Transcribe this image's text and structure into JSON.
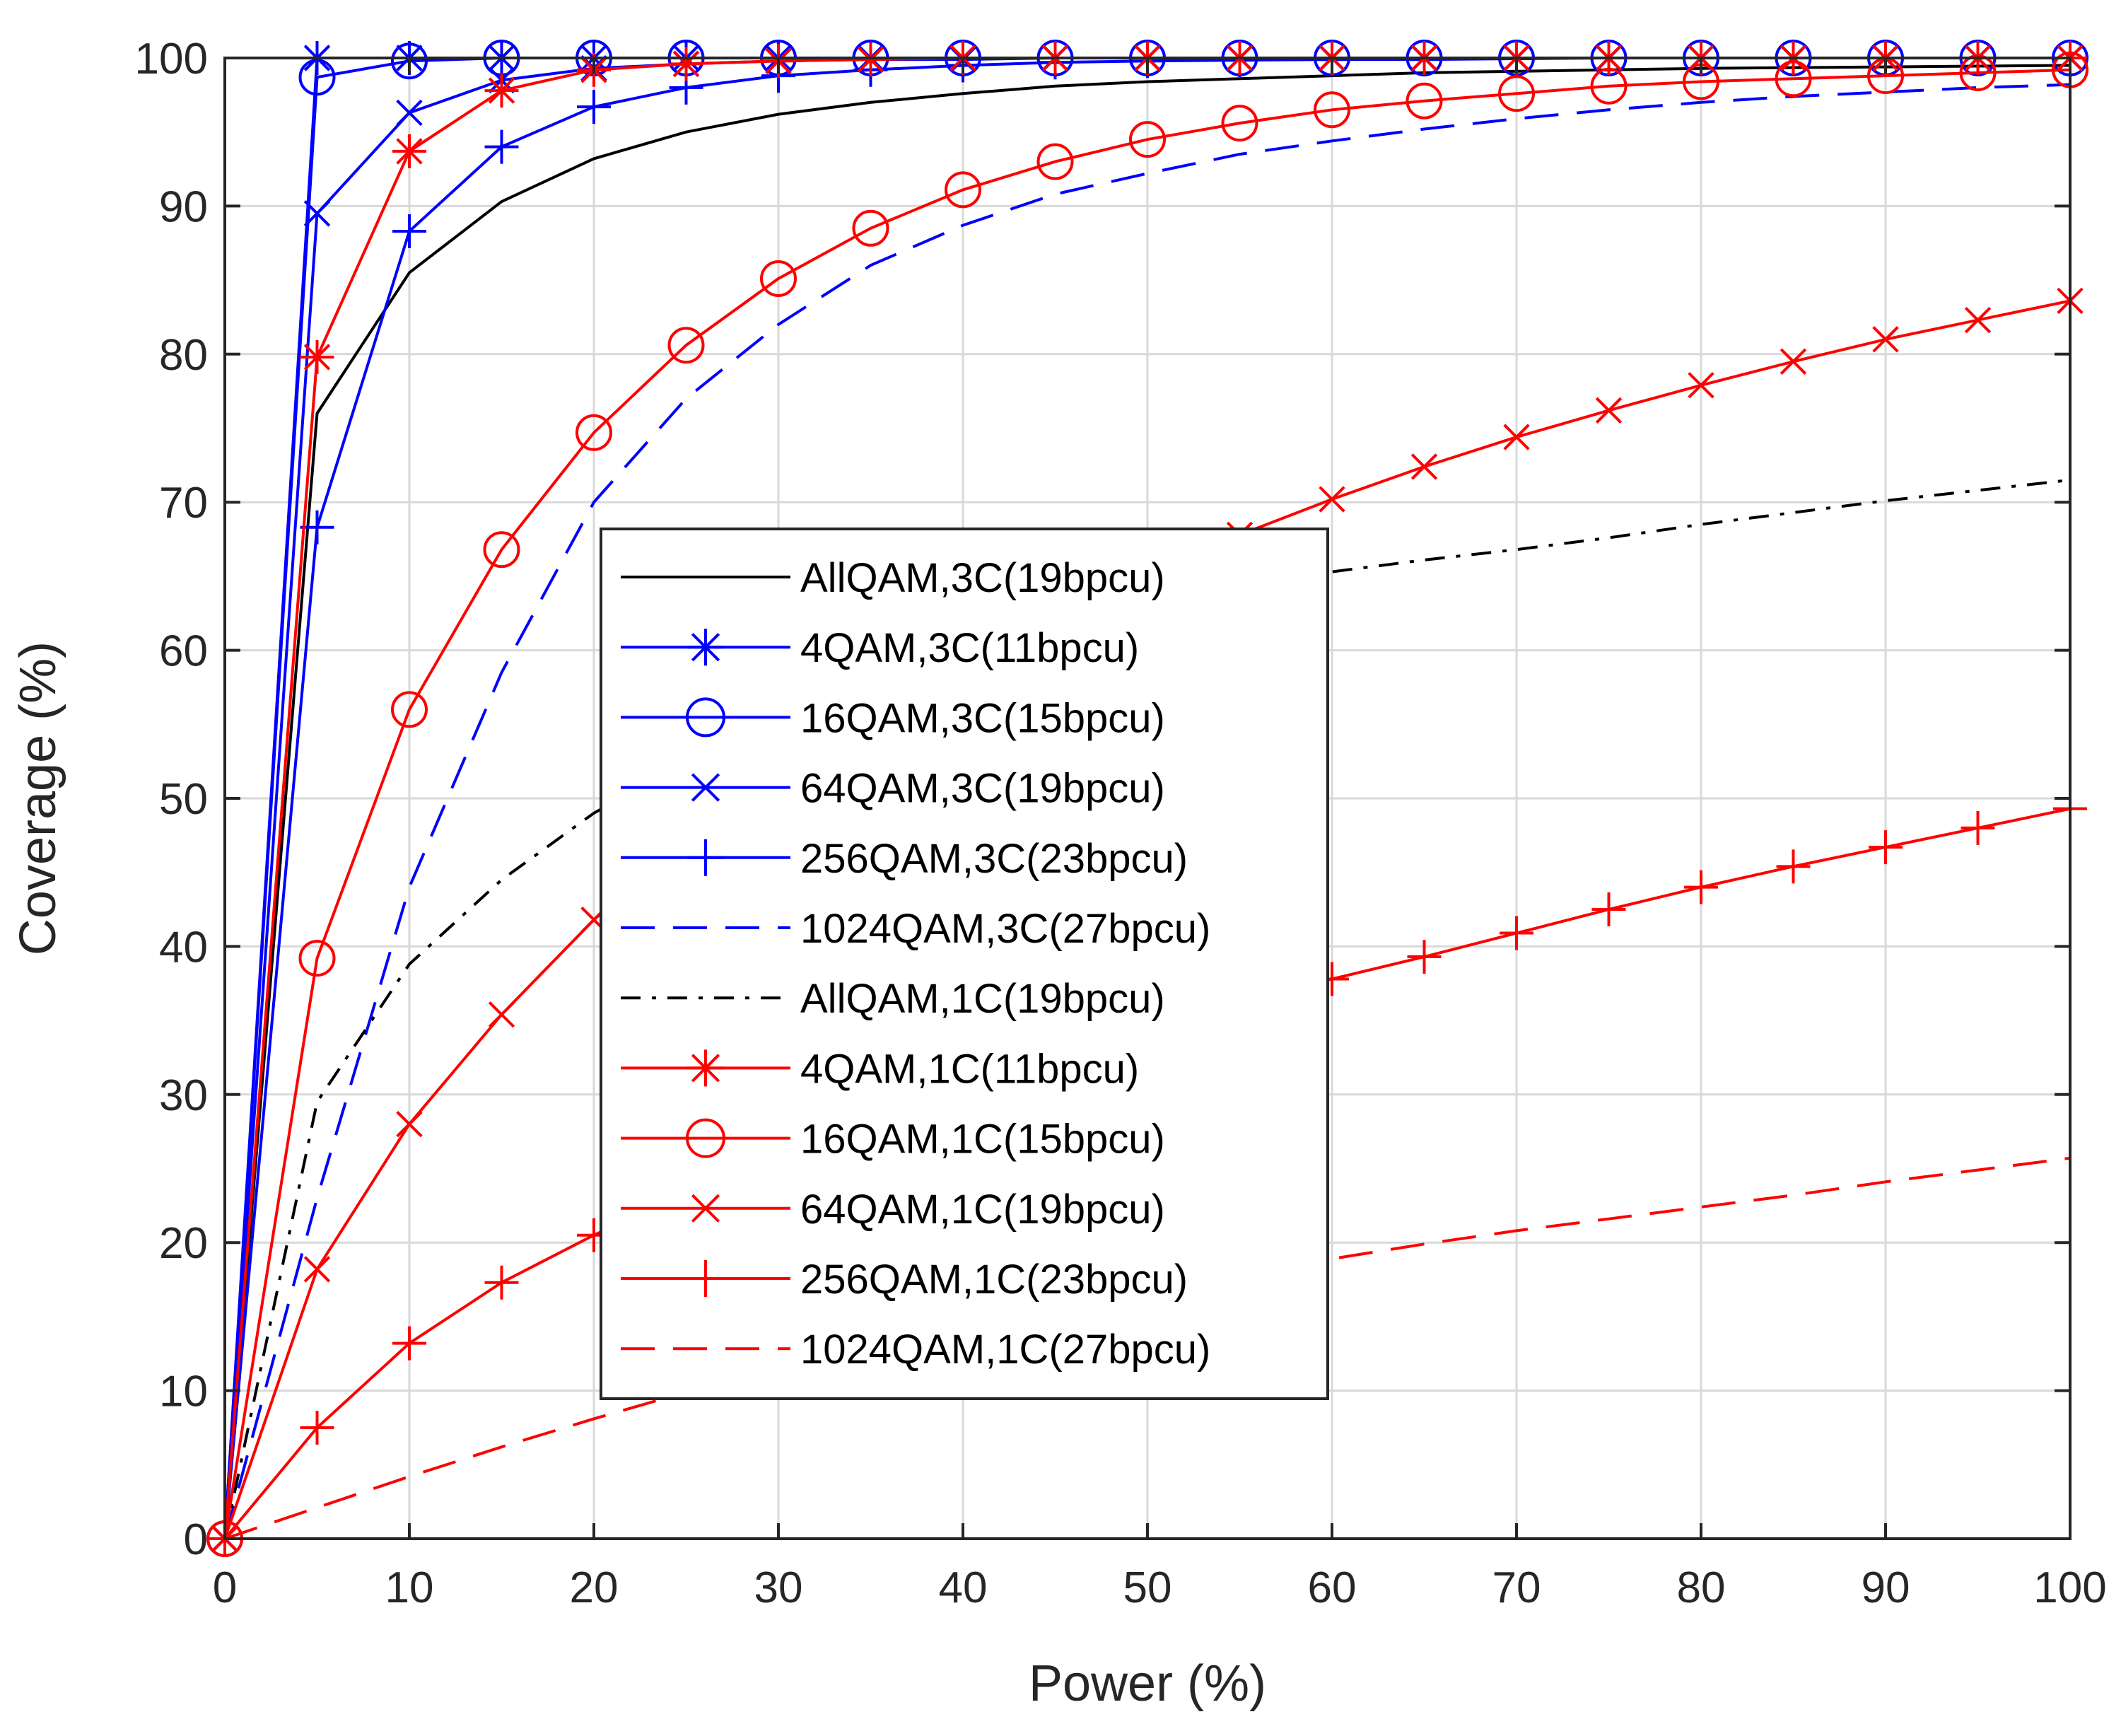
{
  "chart_data": {
    "type": "line",
    "title": "",
    "xlabel": "Power (%)",
    "ylabel": "Coverage (%)",
    "xlim": [
      0,
      100
    ],
    "ylim": [
      0,
      100
    ],
    "xticks": [
      0,
      10,
      20,
      30,
      40,
      50,
      60,
      70,
      80,
      90,
      100
    ],
    "yticks": [
      0,
      10,
      20,
      30,
      40,
      50,
      60,
      70,
      80,
      90,
      100
    ],
    "grid": true,
    "legend_position": "center-left",
    "x": [
      0,
      5,
      10,
      15,
      20,
      25,
      30,
      35,
      40,
      45,
      50,
      55,
      60,
      65,
      70,
      75,
      80,
      85,
      90,
      95,
      100
    ],
    "series": [
      {
        "name": "AllQAM,3C(19bpcu)",
        "color": "#000000",
        "dash": "solid",
        "marker": "none",
        "values": [
          0,
          76,
          85.5,
          90.3,
          93.2,
          95,
          96.2,
          97,
          97.6,
          98.1,
          98.4,
          98.6,
          98.8,
          99,
          99.1,
          99.2,
          99.3,
          99.35,
          99.4,
          99.45,
          99.5
        ]
      },
      {
        "name": "4QAM,3C(11bpcu)",
        "color": "#0000ff",
        "dash": "solid",
        "marker": "star",
        "values": [
          0,
          100,
          100,
          100,
          100,
          100,
          100,
          100,
          100,
          100,
          100,
          100,
          100,
          100,
          100,
          100,
          100,
          100,
          100,
          100,
          100
        ]
      },
      {
        "name": "16QAM,3C(15bpcu)",
        "color": "#0000ff",
        "dash": "solid",
        "marker": "circle",
        "values": [
          0,
          98.7,
          99.8,
          100,
          100,
          100,
          100,
          100,
          100,
          100,
          100,
          100,
          100,
          100,
          100,
          100,
          100,
          100,
          100,
          100,
          100
        ]
      },
      {
        "name": "64QAM,3C(19bpcu)",
        "color": "#0000ff",
        "dash": "solid",
        "marker": "x",
        "values": [
          0,
          89.5,
          96.3,
          98.5,
          99.3,
          99.6,
          99.8,
          99.9,
          99.9,
          100,
          100,
          100,
          100,
          100,
          100,
          100,
          100,
          100,
          100,
          100,
          100
        ]
      },
      {
        "name": "256QAM,3C(23bpcu)",
        "color": "#0000ff",
        "dash": "solid",
        "marker": "plus",
        "values": [
          0,
          68.3,
          88.3,
          94,
          96.7,
          98,
          98.8,
          99.2,
          99.5,
          99.7,
          99.8,
          99.85,
          99.9,
          99.9,
          99.95,
          100,
          100,
          100,
          100,
          100,
          100
        ]
      },
      {
        "name": "1024QAM,3C(27bpcu)",
        "color": "#0000ff",
        "dash": "dashed",
        "marker": "none",
        "values": [
          0,
          23,
          44,
          58.5,
          70,
          77,
          82,
          86,
          88.7,
          90.8,
          92.2,
          93.5,
          94.4,
          95.2,
          95.9,
          96.5,
          97,
          97.4,
          97.7,
          98,
          98.2
        ]
      },
      {
        "name": "AllQAM,1C(19bpcu)",
        "color": "#000000",
        "dash": "dashdot",
        "marker": "none",
        "values": [
          0,
          29.5,
          38.8,
          44.5,
          49,
          52.5,
          55.5,
          57.8,
          59.8,
          61.5,
          63,
          64.2,
          65.3,
          66.1,
          66.8,
          67.6,
          68.5,
          69.3,
          70.1,
          70.8,
          71.5
        ]
      },
      {
        "name": "4QAM,1C(11bpcu)",
        "color": "#ff0000",
        "dash": "solid",
        "marker": "star",
        "values": [
          0,
          79.8,
          93.7,
          97.8,
          99.2,
          99.6,
          99.8,
          99.9,
          100,
          100,
          100,
          100,
          100,
          100,
          100,
          100,
          100,
          100,
          100,
          100,
          100
        ]
      },
      {
        "name": "16QAM,1C(15bpcu)",
        "color": "#ff0000",
        "dash": "solid",
        "marker": "circle",
        "values": [
          0,
          39.2,
          56,
          66.8,
          74.7,
          80.6,
          85.1,
          88.5,
          91.1,
          93,
          94.5,
          95.6,
          96.5,
          97.1,
          97.6,
          98.1,
          98.4,
          98.6,
          98.8,
          99,
          99.2
        ]
      },
      {
        "name": "64QAM,1C(19bpcu)",
        "color": "#ff0000",
        "dash": "solid",
        "marker": "x",
        "values": [
          0,
          18.2,
          28,
          35.4,
          41.8,
          47.3,
          52.3,
          56.8,
          60.8,
          64.4,
          66.5,
          67.8,
          70.2,
          72.4,
          74.4,
          76.2,
          77.9,
          79.5,
          81,
          82.3,
          83.6
        ]
      },
      {
        "name": "256QAM,1C(23bpcu)",
        "color": "#ff0000",
        "dash": "solid",
        "marker": "plus",
        "values": [
          0,
          7.5,
          13.2,
          17.3,
          20.5,
          23.3,
          25.8,
          28.2,
          30.5,
          32.7,
          34.8,
          36.7,
          37.8,
          39.3,
          40.9,
          42.5,
          44,
          45.4,
          46.7,
          48,
          49.3
        ]
      },
      {
        "name": "1024QAM,1C(27bpcu)",
        "color": "#ff0000",
        "dash": "dashed",
        "marker": "none",
        "values": [
          0,
          2.1,
          4.2,
          6.2,
          8.1,
          9.9,
          11.5,
          12.9,
          14.3,
          15.6,
          16.8,
          17.9,
          18.9,
          19.9,
          20.8,
          21.6,
          22.4,
          23.2,
          24.1,
          24.9,
          25.7
        ]
      }
    ]
  }
}
